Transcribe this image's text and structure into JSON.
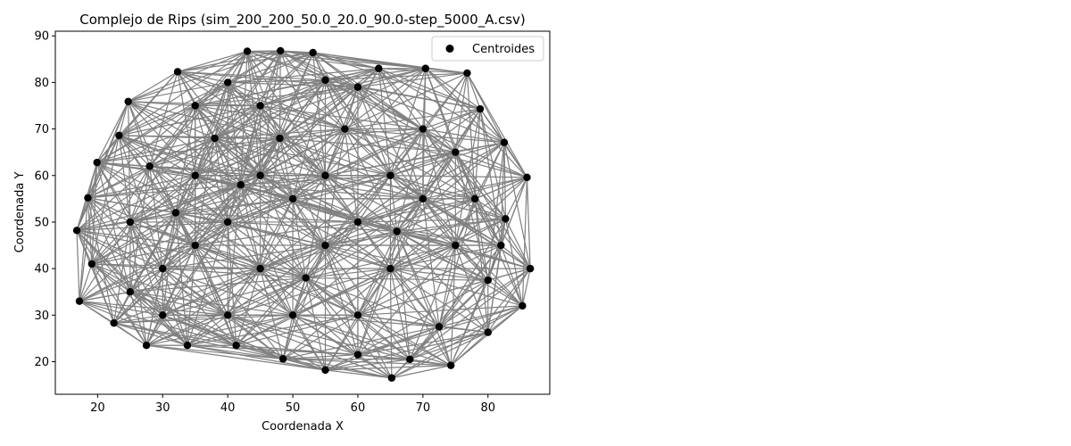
{
  "chart_data": {
    "type": "scatter",
    "title": "Complejo de Rips (sim_200_200_50.0_20.0_90.0-step_5000_A.csv)",
    "xlabel": "Coordenada X",
    "ylabel": "Coordenada Y",
    "xlim": [
      13.5,
      89.5
    ],
    "ylim": [
      13,
      91
    ],
    "xticks": [
      20,
      30,
      40,
      50,
      60,
      70,
      80
    ],
    "yticks": [
      20,
      30,
      40,
      50,
      60,
      70,
      80,
      90
    ],
    "grid": false,
    "legend_position": "top-right",
    "edge_color": "#808080",
    "point_color": "#000000",
    "series": [
      {
        "name": "Centroides",
        "points": [
          [
            17.2,
            33.0
          ],
          [
            16.8,
            48.2
          ],
          [
            18.5,
            55.2
          ],
          [
            19.1,
            41.0
          ],
          [
            19.9,
            62.8
          ],
          [
            22.5,
            28.3
          ],
          [
            23.3,
            68.6
          ],
          [
            24.7,
            75.9
          ],
          [
            27.5,
            23.5
          ],
          [
            32.3,
            82.3
          ],
          [
            33.8,
            23.5
          ],
          [
            43.0,
            86.7
          ],
          [
            48.1,
            86.8
          ],
          [
            53.1,
            86.4
          ],
          [
            55.0,
            18.2
          ],
          [
            63.2,
            83.0
          ],
          [
            65.2,
            16.5
          ],
          [
            70.4,
            83.0
          ],
          [
            74.3,
            19.2
          ],
          [
            76.8,
            82.0
          ],
          [
            80.0,
            26.3
          ],
          [
            78.8,
            74.3
          ],
          [
            82.5,
            67.1
          ],
          [
            85.3,
            32.0
          ],
          [
            86.0,
            59.6
          ],
          [
            86.5,
            40.0
          ],
          [
            82.7,
            50.7
          ],
          [
            82.0,
            45.0
          ],
          [
            80.0,
            37.5
          ],
          [
            41.3,
            23.5
          ],
          [
            48.5,
            20.6
          ],
          [
            60.0,
            21.5
          ],
          [
            68.0,
            20.5
          ],
          [
            72.5,
            27.5
          ],
          [
            30.0,
            30.0
          ],
          [
            25.0,
            35.0
          ],
          [
            35.0,
            75.0
          ],
          [
            40.0,
            80.0
          ],
          [
            55.0,
            80.5
          ],
          [
            60.0,
            79.0
          ],
          [
            45.0,
            75.0
          ],
          [
            70.0,
            70.0
          ],
          [
            75.0,
            65.0
          ],
          [
            65.0,
            60.0
          ],
          [
            55.0,
            60.0
          ],
          [
            45.0,
            60.0
          ],
          [
            35.0,
            60.0
          ],
          [
            25.0,
            50.0
          ],
          [
            35.0,
            45.0
          ],
          [
            45.0,
            40.0
          ],
          [
            55.0,
            45.0
          ],
          [
            65.0,
            40.0
          ],
          [
            75.0,
            45.0
          ],
          [
            70.0,
            55.0
          ],
          [
            60.0,
            30.0
          ],
          [
            50.0,
            30.0
          ],
          [
            40.0,
            30.0
          ],
          [
            30.0,
            40.0
          ],
          [
            40.0,
            50.0
          ],
          [
            50.0,
            55.0
          ],
          [
            60.0,
            50.0
          ],
          [
            78.0,
            55.0
          ],
          [
            28.0,
            62.0
          ],
          [
            32.0,
            52.0
          ],
          [
            48.0,
            68.0
          ],
          [
            58.0,
            70.0
          ],
          [
            38.0,
            68.0
          ],
          [
            66.0,
            48.0
          ],
          [
            52.0,
            38.0
          ],
          [
            42.0,
            58.0
          ]
        ]
      }
    ],
    "edge_threshold": 30
  }
}
